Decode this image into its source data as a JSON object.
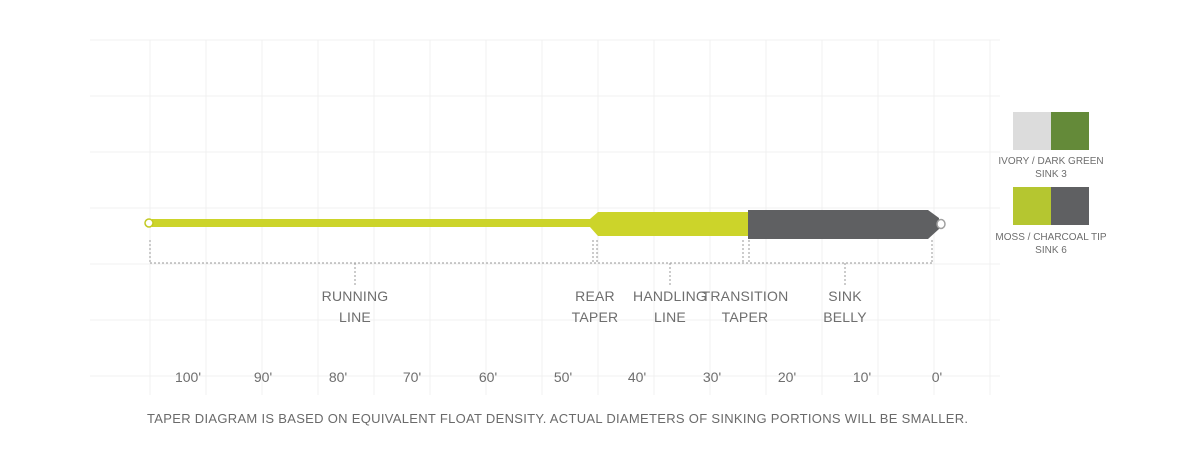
{
  "colors": {
    "running_line": "#ccd42a",
    "belly": "#5f6062",
    "guide": "#9a9a9a",
    "grid": "#f0f0f0"
  },
  "sections": [
    {
      "key": "running",
      "line1": "RUNNING",
      "line2": "LINE"
    },
    {
      "key": "rear",
      "line1": "REAR",
      "line2": "TAPER"
    },
    {
      "key": "handling",
      "line1": "HANDLING",
      "line2": "LINE"
    },
    {
      "key": "transition",
      "line1": "TRANSITION",
      "line2": "TAPER"
    },
    {
      "key": "sink",
      "line1": "SINK",
      "line2": "BELLY"
    }
  ],
  "axis_ticks": [
    "100'",
    "90'",
    "80'",
    "70'",
    "60'",
    "50'",
    "40'",
    "30'",
    "20'",
    "10'",
    "0'"
  ],
  "note": "TAPER DIAGRAM IS BASED ON EQUIVALENT FLOAT DENSITY.  ACTUAL DIAMETERS OF SINKING PORTIONS WILL BE SMALLER.",
  "legend": [
    {
      "caption_line1": "IVORY / DARK GREEN",
      "caption_line2": "SINK 3",
      "colors": [
        "#dcdcdc",
        "#648a39"
      ]
    },
    {
      "caption_line1": "MOSS / CHARCOAL TIP",
      "caption_line2": "SINK 6",
      "colors": [
        "#b5c630",
        "#5f6062"
      ]
    }
  ]
}
